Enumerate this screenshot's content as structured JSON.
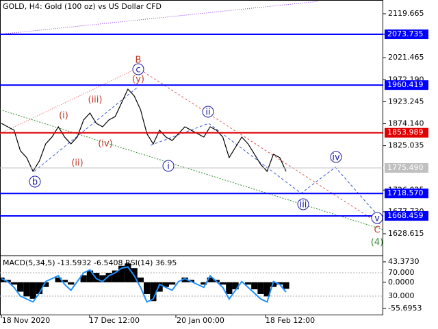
{
  "header": {
    "title": "GOLD, H4:  Gold (100 oz) vs US Dollar CFD"
  },
  "chart_data": [
    {
      "type": "line",
      "color": "#000000",
      "ylim": [
        1581.2,
        2150.3
      ],
      "yticks": [
        2119.665,
        {
          "value": 2073.735,
          "label": "2073.735"
        },
        2021.465,
        {
          "value": 1972.19,
          "label": "1972.190"
        },
        1923.245,
        {
          "value": 1874.14,
          "label": "1874.140"
        },
        1825.035,
        1726.025,
        {
          "value": 1677.73,
          "label": "1677.730"
        },
        1628.615
      ],
      "levels": [
        {
          "value": 2073.735,
          "label": "2073.735",
          "color": "#0000ff"
        },
        {
          "value": 1960.419,
          "label": "1960.419",
          "color": "#0000ff"
        },
        {
          "value": 1853.989,
          "label": "1853.989",
          "color": "#e00000"
        },
        {
          "value": 1775.49,
          "label": "1775.490",
          "color": "#c0c0c0"
        },
        {
          "value": 1718.57,
          "label": "1718.570",
          "color": "#0000ff"
        },
        {
          "value": 1668.459,
          "label": "1668.459",
          "color": "#0000ff"
        }
      ],
      "values": [
        1875.0,
        1867.3,
        1859.7,
        1813.8,
        1798.5,
        1767.9,
        1790.8,
        1829.1,
        1844.4,
        1867.3,
        1844.4,
        1829.1,
        1844.4,
        1882.6,
        1897.9,
        1875.0,
        1867.3,
        1882.6,
        1890.2,
        1920.8,
        1951.4,
        1936.1,
        1905.5,
        1852.0,
        1829.1,
        1859.7,
        1844.4,
        1836.7,
        1852.0,
        1867.3,
        1859.7,
        1852.0,
        1844.4,
        1867.3,
        1859.7,
        1844.4,
        1798.5,
        1821.4,
        1844.4,
        1829.1,
        1806.1,
        1783.2,
        1767.9,
        1806.1,
        1798.5,
        1767.9
      ],
      "x_labels": [
        "18 Nov 2020",
        "17 Dec 12:00",
        "20 Jan 00:00",
        "18 Feb 12:00"
      ],
      "annotations": [
        {
          "text": "B",
          "color": "#c0392b"
        },
        {
          "text": "c",
          "color": "#1a1aa6",
          "circled": true
        },
        {
          "text": "(y)",
          "color": "#c0392b"
        },
        {
          "text": "(i)",
          "color": "#c0392b"
        },
        {
          "text": "(ii)",
          "color": "#c0392b"
        },
        {
          "text": "(iii)",
          "color": "#c0392b"
        },
        {
          "text": "(iv)",
          "color": "#c0392b"
        },
        {
          "text": "b",
          "color": "#1a1aa6",
          "circled": true
        },
        {
          "text": "i",
          "color": "#1a1aa6",
          "circled": true
        },
        {
          "text": "ii",
          "color": "#1a1aa6",
          "circled": true
        },
        {
          "text": "iii",
          "color": "#1a1aa6",
          "circled": true
        },
        {
          "text": "iv",
          "color": "#1a1aa6",
          "circled": true
        },
        {
          "text": "v",
          "color": "#1a1aa6",
          "circled": true
        },
        {
          "text": "C",
          "color": "#c0392b"
        },
        {
          "text": "(4)",
          "color": "#2e8b2e"
        }
      ]
    },
    {
      "type": "macd",
      "title": "MACD(5,34,5) -13.5932 -6.5408 RSI(14) 36.95",
      "color": "#000000",
      "ylim": [
        -62.9,
        49.2
      ],
      "yticks": [
        {
          "value": 43.373,
          "label": "43.3730"
        },
        {
          "value": 0,
          "label": "0.0000"
        },
        -55.6953
      ],
      "values": [
        10,
        5,
        -5,
        -20,
        -30,
        -35,
        -25,
        -10,
        0,
        10,
        5,
        -5,
        0,
        15,
        25,
        20,
        15,
        20,
        25,
        35,
        40,
        30,
        10,
        -25,
        -40,
        -20,
        -10,
        -5,
        0,
        10,
        5,
        0,
        -5,
        10,
        5,
        -5,
        -25,
        -15,
        0,
        -5,
        -15,
        -25,
        -30,
        -10,
        -5,
        -14
      ],
      "rsi": {
        "color": "#1e90ff",
        "ylim": [
          0,
          100
        ],
        "levels": [
          {
            "value": 70,
            "label": "70.000"
          },
          {
            "value": 30,
            "label": "30.000"
          }
        ],
        "values": [
          60,
          55,
          45,
          30,
          25,
          20,
          35,
          55,
          60,
          65,
          50,
          40,
          55,
          70,
          75,
          60,
          55,
          65,
          70,
          78,
          80,
          65,
          45,
          20,
          25,
          50,
          45,
          40,
          55,
          60,
          55,
          50,
          45,
          65,
          55,
          45,
          25,
          40,
          55,
          45,
          35,
          25,
          20,
          55,
          50,
          37
        ]
      }
    }
  ]
}
